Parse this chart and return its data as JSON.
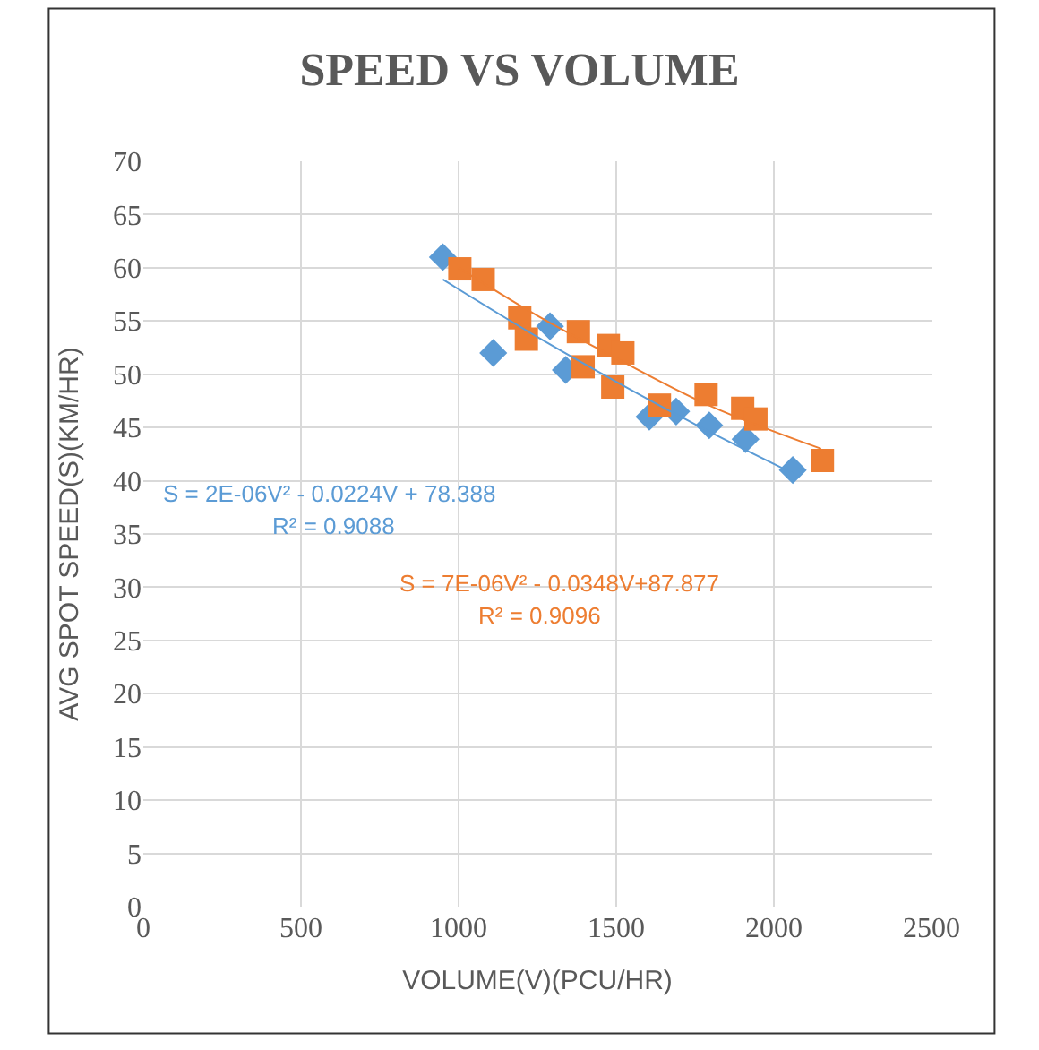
{
  "chart_data": {
    "type": "scatter",
    "title": "SPEED VS VOLUME",
    "xlabel": "VOLUME(V)(PCU/HR)",
    "ylabel": "AVG SPOT SPEED(S)(KM/HR)",
    "xlim": [
      0,
      2500
    ],
    "xticks": [
      0,
      500,
      1000,
      1500,
      2000,
      2500
    ],
    "ylim": [
      0,
      70
    ],
    "yticks": [
      0,
      5,
      10,
      15,
      20,
      25,
      30,
      35,
      40,
      45,
      50,
      55,
      60,
      65,
      70
    ],
    "grid": true,
    "legend": false,
    "series": [
      {
        "color": "#5b9bd5",
        "marker": "diamond",
        "x": [
          950,
          1110,
          1290,
          1340,
          1605,
          1690,
          1795,
          1910,
          2060
        ],
        "values": [
          61,
          52,
          54.5,
          50.4,
          46,
          46.5,
          45.2,
          43.9,
          41
        ]
      },
      {
        "color": "#ed7d31",
        "marker": "square",
        "x": [
          1004,
          1078,
          1194,
          1215,
          1380,
          1395,
          1475,
          1489,
          1521,
          1637,
          1785,
          1901,
          1943,
          2154
        ],
        "values": [
          59.9,
          58.9,
          55.3,
          53.3,
          54,
          50.7,
          52.7,
          48.8,
          52,
          47.1,
          48.1,
          46.8,
          45.8,
          41.9
        ]
      },
      {
        "type": "line",
        "color": "#5b9bd5",
        "marker": "none",
        "x": [
          950,
          1250,
          1500,
          1750,
          2060
        ],
        "values": [
          58.9,
          53.5,
          49.3,
          45.3,
          40.7
        ]
      },
      {
        "type": "line",
        "color": "#ed7d31",
        "marker": "none",
        "x": [
          1000,
          1250,
          1500,
          1800,
          2150
        ],
        "values": [
          60,
          55.5,
          51.5,
          47,
          43
        ]
      }
    ],
    "annotations": [
      "S = 2E-06V² - 0.0224V + 78.388",
      "R² = 0.9088",
      "S = 7E-06V² - 0.0348V+87.877",
      "R² = 0.9096"
    ]
  }
}
